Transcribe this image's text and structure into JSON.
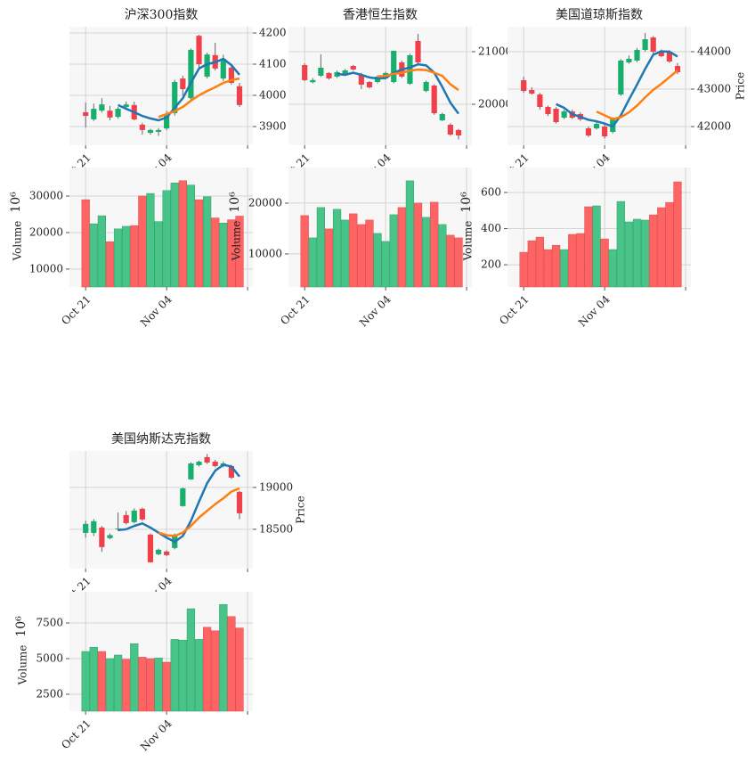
{
  "chart_data": [
    {
      "type": "candlestick",
      "title": "沪深300指数",
      "xlim": [
        -2,
        20.65
      ],
      "xticks": [
        {
          "value": 0,
          "label": "Oct 21"
        },
        {
          "value": 10,
          "label": "Nov 04"
        },
        {
          "value": 20,
          "label": null
        }
      ],
      "open": [
        3946,
        3923,
        3951,
        3951,
        3931,
        3963,
        3969,
        3906,
        3880,
        3883,
        3894,
        3943,
        4054,
        3991,
        4191,
        4060,
        4129,
        4054,
        4089,
        4029
      ],
      "close": [
        3934,
        3957,
        3971,
        3929,
        3957,
        3971,
        3923,
        3889,
        3889,
        3889,
        3940,
        4043,
        4020,
        4146,
        4100,
        4131,
        4086,
        4117,
        4040,
        3969
      ],
      "high": [
        3977,
        3974,
        3991,
        3966,
        3963,
        3980,
        3980,
        3912,
        3893,
        3895,
        3950,
        4050,
        4063,
        4150,
        4194,
        4137,
        4169,
        4130,
        4100,
        4040
      ],
      "low": [
        3897,
        3918,
        3945,
        3920,
        3925,
        3958,
        3920,
        3874,
        3874,
        3870,
        3888,
        3935,
        4000,
        3985,
        4089,
        4054,
        4080,
        4046,
        4034,
        3963
      ],
      "up_color": "#16b06c",
      "down_color": "#f2404a",
      "wick_color": "#666666",
      "ylim": [
        3840,
        4220
      ],
      "yticks": [
        3900,
        4000,
        4100,
        4200
      ],
      "grid": true,
      "moving_averages": [
        {
          "color": "#1f77b4",
          "values": [
            null,
            null,
            null,
            null,
            3969,
            3957,
            3946,
            3934,
            3926,
            3920,
            3929,
            3960,
            3991,
            4040,
            4086,
            4100,
            4106,
            4117,
            4097,
            4066
          ]
        },
        {
          "color": "#ff7f0e",
          "values": [
            null,
            null,
            null,
            null,
            null,
            null,
            null,
            null,
            null,
            3931,
            3940,
            3949,
            3963,
            3983,
            4000,
            4014,
            4026,
            4040,
            4049,
            4054
          ]
        }
      ],
      "volume": {
        "values": [
          29000,
          22400,
          24600,
          17500,
          21000,
          21700,
          21900,
          30000,
          30700,
          23000,
          31500,
          33600,
          34200,
          33000,
          29000,
          29800,
          24000,
          22600,
          23500,
          24500
        ],
        "up_color": "#48c488",
        "down_color": "#ff6464",
        "ylim": [
          5100,
          37800
        ],
        "yticks": [
          10000,
          20000,
          30000
        ],
        "ylabel": "Volume",
        "offset": "10⁶"
      }
    },
    {
      "type": "candlestick",
      "title": "香港恒生指数",
      "xlim": [
        -2,
        20.65
      ],
      "xticks": [
        {
          "value": 0,
          "label": "Oct 21"
        },
        {
          "value": 10,
          "label": "Nov 04"
        },
        {
          "value": 20,
          "label": null
        }
      ],
      "open": [
        20746,
        20420,
        20543,
        20594,
        20526,
        20560,
        20729,
        20560,
        20424,
        20424,
        20492,
        20424,
        20797,
        20390,
        21204,
        20255,
        20356,
        19695,
        19610,
        19509
      ],
      "close": [
        20458,
        20460,
        20695,
        20492,
        20611,
        20645,
        20662,
        20373,
        20322,
        20526,
        20594,
        21017,
        20526,
        20933,
        20797,
        20424,
        19830,
        19814,
        19424,
        19407
      ],
      "high": [
        20780,
        20500,
        20950,
        20610,
        20640,
        20670,
        20750,
        20600,
        20440,
        20550,
        20620,
        21020,
        20830,
        20960,
        21340,
        20450,
        20380,
        19840,
        19640,
        19530
      ],
      "low": [
        20440,
        20400,
        20520,
        20470,
        20500,
        20540,
        20640,
        20290,
        20300,
        20400,
        20470,
        20400,
        20500,
        20370,
        20780,
        20230,
        19800,
        19680,
        19400,
        19330
      ],
      "up_color": "#16b06c",
      "down_color": "#f2404a",
      "wick_color": "#666666",
      "ylim": [
        19220,
        21475
      ],
      "yticks": [
        20000,
        21000
      ],
      "grid": true,
      "moving_averages": [
        {
          "color": "#1f77b4",
          "values": [
            null,
            null,
            null,
            null,
            20577,
            20560,
            20600,
            20560,
            20510,
            20490,
            20500,
            20600,
            20660,
            20700,
            20760,
            20740,
            20600,
            20330,
            20030,
            19820
          ]
        },
        {
          "color": "#ff7f0e",
          "values": [
            null,
            null,
            null,
            null,
            null,
            null,
            null,
            null,
            null,
            20530,
            20540,
            20580,
            20600,
            20640,
            20660,
            20650,
            20600,
            20540,
            20380,
            20270
          ]
        }
      ],
      "volume": {
        "values": [
          17550,
          13160,
          19130,
          14920,
          18780,
          16670,
          17900,
          15790,
          16670,
          14040,
          12460,
          17720,
          19130,
          24390,
          20000,
          17200,
          20180,
          15790,
          13690,
          13160
        ],
        "up_color": "#48c488",
        "down_color": "#ff6464",
        "ylim": [
          3500,
          27000
        ],
        "yticks": [
          10000,
          20000
        ],
        "ylabel": "Volume",
        "offset": "10⁶"
      }
    },
    {
      "type": "candlestick",
      "title": "美国道琼斯指数",
      "ylabel": "Price",
      "xlim": [
        -2,
        20.65
      ],
      "xticks": [
        {
          "value": 0,
          "label": "Oct 21"
        },
        {
          "value": 10,
          "label": "Nov 04"
        },
        {
          "value": 20,
          "label": null
        }
      ],
      "open": [
        43238,
        42976,
        42857,
        42524,
        42476,
        42238,
        42405,
        42333,
        41952,
        41952,
        42000,
        41857,
        42857,
        43714,
        43762,
        44048,
        44381,
        44024,
        44000,
        43619
      ],
      "close": [
        42952,
        42881,
        42524,
        42333,
        42119,
        42405,
        42238,
        42191,
        41762,
        42071,
        41738,
        42214,
        43762,
        43810,
        44048,
        44333,
        44000,
        43881,
        43738,
        43452
      ],
      "high": [
        43330,
        43050,
        42900,
        42560,
        42520,
        42450,
        42450,
        42380,
        42000,
        42120,
        42050,
        42250,
        43800,
        43900,
        44100,
        44500,
        44420,
        44060,
        44040,
        43700
      ],
      "low": [
        42900,
        42850,
        42450,
        42280,
        42080,
        42200,
        42200,
        42150,
        41720,
        41920,
        41680,
        41820,
        42820,
        43680,
        43720,
        44000,
        43950,
        43850,
        43700,
        43400
      ],
      "up_color": "#16b06c",
      "down_color": "#f2404a",
      "wick_color": "#666666",
      "ylim": [
        41500,
        44667
      ],
      "yticks": [
        42000,
        43000,
        44000
      ],
      "grid": true,
      "moving_averages": [
        {
          "color": "#1f77b4",
          "values": [
            null,
            null,
            null,
            null,
            42600,
            42500,
            42330,
            42260,
            42180,
            42140,
            42080,
            42000,
            42300,
            42720,
            43120,
            43540,
            43920,
            44010,
            44000,
            43870
          ]
        },
        {
          "color": "#ff7f0e",
          "values": [
            null,
            null,
            null,
            null,
            null,
            null,
            null,
            null,
            null,
            42400,
            42300,
            42200,
            42250,
            42380,
            42560,
            42780,
            42980,
            43140,
            43320,
            43500
          ]
        }
      ],
      "volume": {
        "values": [
          269,
          333,
          353,
          284,
          308,
          284,
          368,
          373,
          521,
          526,
          343,
          284,
          550,
          437,
          452,
          447,
          476,
          516,
          545,
          659
        ],
        "up_color": "#48c488",
        "down_color": "#ff6464",
        "ylim": [
          77,
          738
        ],
        "yticks": [
          200,
          400,
          600
        ],
        "ylabel": "Volume",
        "offset": "10⁶"
      }
    },
    {
      "type": "candlestick",
      "title": "美国纳斯达克指数",
      "ylabel": "Price",
      "xlim": [
        -2,
        20.65
      ],
      "xticks": [
        {
          "value": 0,
          "label": "Oct 21"
        },
        {
          "value": 10,
          "label": "Nov 04"
        },
        {
          "value": 20,
          "label": null
        }
      ],
      "open": [
        18457,
        18457,
        18521,
        18394,
        18500,
        18670,
        18585,
        18745,
        18436,
        18202,
        18234,
        18276,
        18777,
        19096,
        19266,
        19362,
        19308,
        19255,
        19255,
        18947
      ],
      "close": [
        18564,
        18596,
        18287,
        18430,
        18510,
        18574,
        18723,
        18617,
        18106,
        18255,
        18191,
        18436,
        18989,
        19287,
        19308,
        19298,
        19255,
        19287,
        19117,
        18691
      ],
      "high": [
        18600,
        18620,
        18540,
        18450,
        18700,
        18720,
        18750,
        18760,
        18450,
        18270,
        18250,
        18450,
        19000,
        19300,
        19320,
        19400,
        19330,
        19310,
        19270,
        18960
      ],
      "low": [
        18400,
        18420,
        18230,
        18380,
        18480,
        18560,
        18570,
        18600,
        18100,
        18190,
        18180,
        18260,
        18770,
        19090,
        19250,
        19280,
        19240,
        19240,
        19100,
        18620
      ],
      "up_color": "#16b06c",
      "down_color": "#f2404a",
      "wick_color": "#666666",
      "ylim": [
        18030,
        19436
      ],
      "yticks": [
        18500,
        19000
      ],
      "grid": true,
      "moving_averages": [
        {
          "color": "#1f77b4",
          "values": [
            null,
            null,
            null,
            null,
            18490,
            18500,
            18540,
            18570,
            18520,
            18460,
            18400,
            18350,
            18420,
            18600,
            18830,
            19050,
            19200,
            19270,
            19250,
            19130
          ]
        },
        {
          "color": "#ff7f0e",
          "values": [
            null,
            null,
            null,
            null,
            null,
            null,
            null,
            null,
            null,
            18460,
            18430,
            18420,
            18460,
            18540,
            18640,
            18720,
            18800,
            18870,
            18950,
            18990
          ]
        }
      ],
      "volume": {
        "values": [
          5500,
          5800,
          5500,
          5000,
          5250,
          4950,
          6050,
          5100,
          5000,
          5050,
          4750,
          6350,
          6300,
          8500,
          6350,
          7200,
          6950,
          8800,
          7950,
          7150
        ],
        "up_color": "#48c488",
        "down_color": "#ff6464",
        "ylim": [
          1310,
          9690
        ],
        "yticks": [
          2500,
          5000,
          7500
        ],
        "ylabel": "Volume",
        "offset": "10⁶"
      }
    }
  ]
}
